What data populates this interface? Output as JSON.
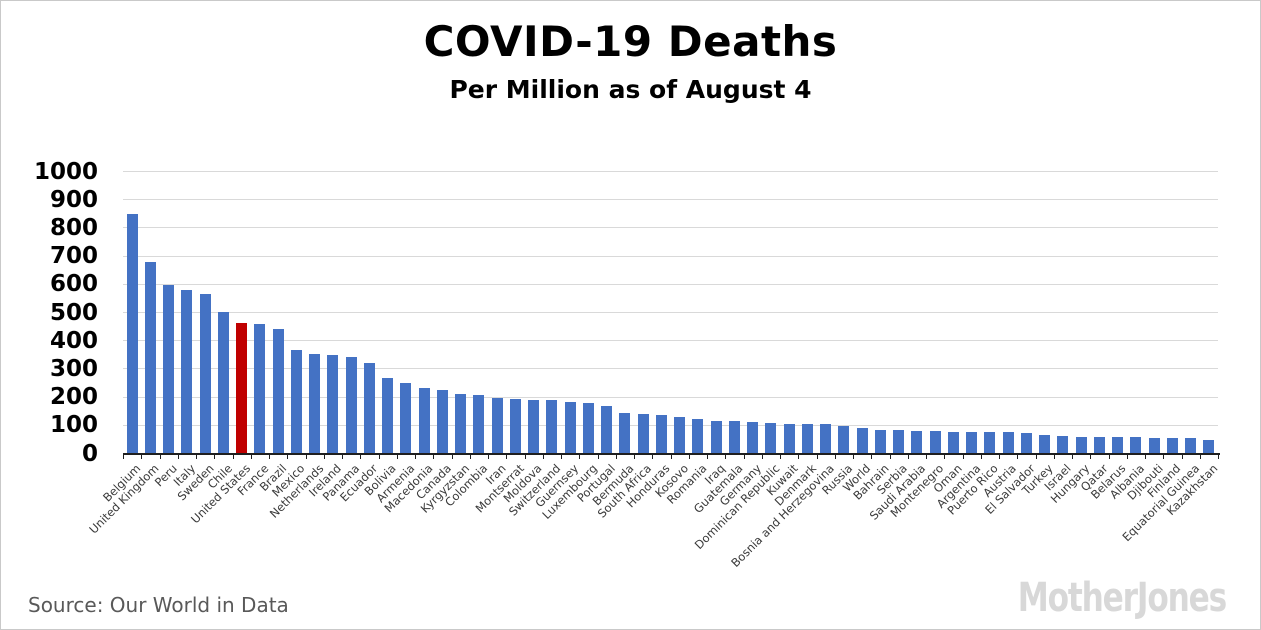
{
  "header": {
    "title": "COVID-19 Deaths",
    "subtitle": "Per Million as of August 4"
  },
  "footer": {
    "source": "Source: Our World in Data",
    "logo": "MotherJones"
  },
  "colors": {
    "bar_blue": "#4472C4",
    "highlight_red": "#C00000",
    "gridline": "#D9D9D9",
    "axis": "#1f1f1f",
    "x_label": "#3a3a3a",
    "source_text": "#595959",
    "logo_gray": "#D8D8D8",
    "frame_border": "#c9c9c9"
  },
  "chart_data": {
    "type": "bar",
    "title": "COVID-19 Deaths",
    "subtitle": "Per Million as of August 4",
    "xlabel": "",
    "ylabel": "",
    "ylim": [
      0,
      1000
    ],
    "yticks": [
      0,
      100,
      200,
      300,
      400,
      500,
      600,
      700,
      800,
      900,
      1000
    ],
    "grid": true,
    "legend": "none",
    "bar_color": "#4472C4",
    "highlight_category": "United States",
    "highlight_color": "#C00000",
    "categories": [
      "Belgium",
      "United Kingdom",
      "Peru",
      "Italy",
      "Sweden",
      "Chile",
      "United States",
      "France",
      "Brazil",
      "Mexico",
      "Netherlands",
      "Ireland",
      "Panama",
      "Ecuador",
      "Bolivia",
      "Armenia",
      "Macedonia",
      "Canada",
      "Kyrgyzstan",
      "Colombia",
      "Iran",
      "Montserrat",
      "Moldova",
      "Switzerland",
      "Guernsey",
      "Luxembourg",
      "Portugal",
      "Bermuda",
      "South Africa",
      "Honduras",
      "Kosovo",
      "Romania",
      "Iraq",
      "Guatemala",
      "Germany",
      "Dominican Republic",
      "Kuwait",
      "Denmark",
      "Bosnia and Herzegovina",
      "Russia",
      "World",
      "Bahrain",
      "Serbia",
      "Saudi Arabia",
      "Montenegro",
      "Oman",
      "Argentina",
      "Puerto Rico",
      "Austria",
      "El Salvador",
      "Turkey",
      "Israel",
      "Hungary",
      "Qatar",
      "Belarus",
      "Albania",
      "Djibouti",
      "Finland",
      "Equatorial Guinea",
      "Kazakhstan"
    ],
    "values": [
      849,
      679,
      598,
      581,
      566,
      502,
      463,
      458,
      442,
      368,
      353,
      349,
      341,
      321,
      269,
      249,
      232,
      227,
      211,
      206,
      196,
      192,
      190,
      189,
      184,
      178,
      170,
      144,
      140,
      135,
      130,
      124,
      117,
      114,
      110,
      107,
      106,
      106,
      105,
      97,
      90,
      84,
      82,
      81,
      79,
      78,
      77,
      75,
      75,
      73,
      67,
      62,
      60,
      59,
      58,
      57,
      56,
      56,
      54,
      48
    ]
  }
}
